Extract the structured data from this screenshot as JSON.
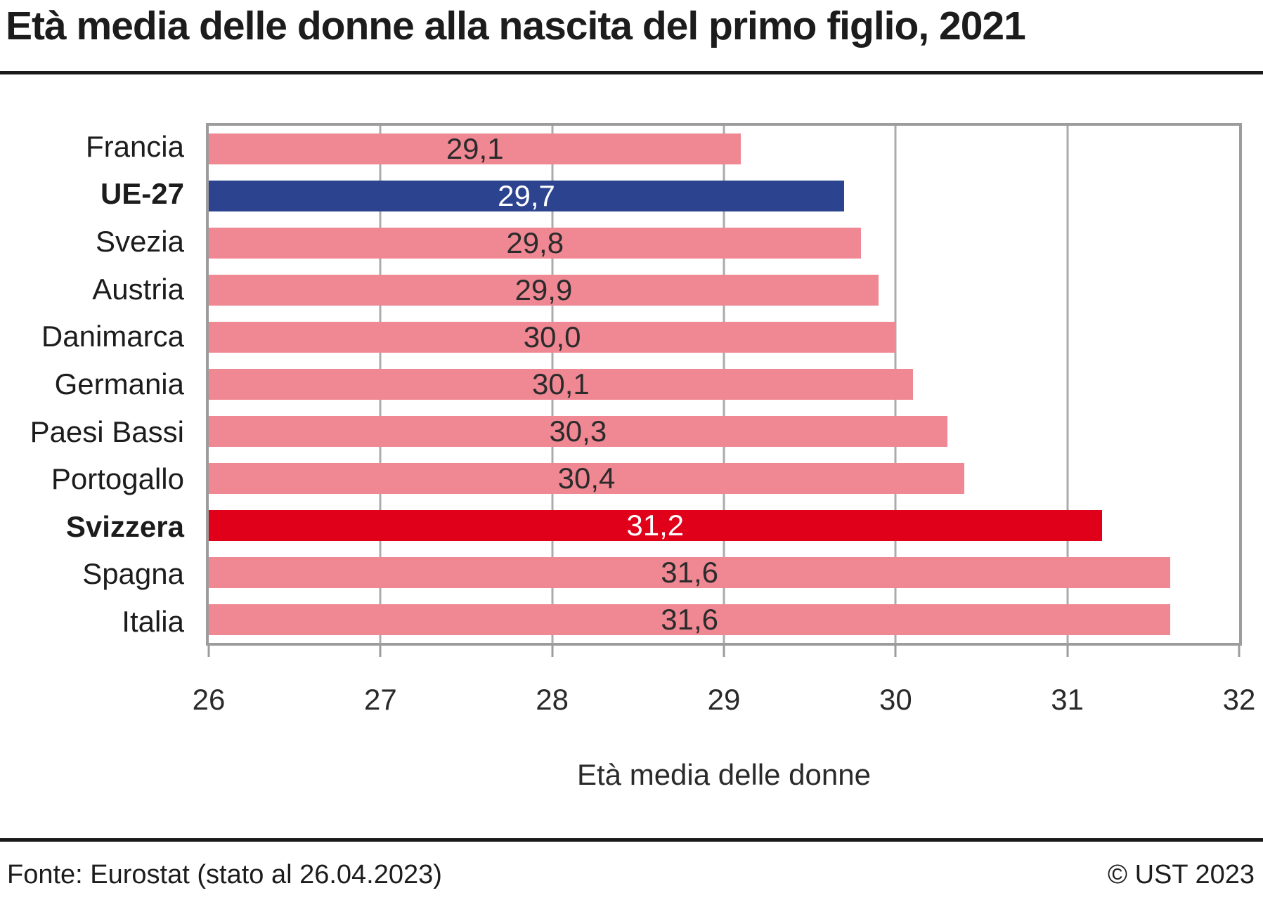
{
  "title": "Età media delle donne alla nascita del primo figlio, 2021",
  "footer": {
    "source": "Fonte: Eurostat (stato al 26.04.2023)",
    "copyright": "© UST 2023"
  },
  "chart_data": {
    "type": "bar",
    "orientation": "horizontal",
    "title": "Età media delle donne alla nascita del primo figlio, 2021",
    "xlabel": "Età media delle donne",
    "xlim": [
      26,
      32
    ],
    "x_ticks": [
      "26",
      "27",
      "28",
      "29",
      "30",
      "31",
      "32"
    ],
    "grid": true,
    "legend": "none",
    "categories": [
      "Francia",
      "UE-27",
      "Svezia",
      "Austria",
      "Danimarca",
      "Germania",
      "Paesi Bassi",
      "Portogallo",
      "Svizzera",
      "Spagna",
      "Italia"
    ],
    "values": [
      29.1,
      29.7,
      29.8,
      29.9,
      30.0,
      30.1,
      30.3,
      30.4,
      31.2,
      31.6,
      31.6
    ],
    "series": [
      {
        "label": "Francia",
        "value": 29.1,
        "display": "29,1",
        "emphasis": "none"
      },
      {
        "label": "UE-27",
        "value": 29.7,
        "display": "29,7",
        "emphasis": "eu"
      },
      {
        "label": "Svezia",
        "value": 29.8,
        "display": "29,8",
        "emphasis": "none"
      },
      {
        "label": "Austria",
        "value": 29.9,
        "display": "29,9",
        "emphasis": "none"
      },
      {
        "label": "Danimarca",
        "value": 30.0,
        "display": "30,0",
        "emphasis": "none"
      },
      {
        "label": "Germania",
        "value": 30.1,
        "display": "30,1",
        "emphasis": "none"
      },
      {
        "label": "Paesi Bassi",
        "value": 30.3,
        "display": "30,3",
        "emphasis": "none"
      },
      {
        "label": "Portogallo",
        "value": 30.4,
        "display": "30,4",
        "emphasis": "none"
      },
      {
        "label": "Svizzera",
        "value": 31.2,
        "display": "31,2",
        "emphasis": "ch"
      },
      {
        "label": "Spagna",
        "value": 31.6,
        "display": "31,6",
        "emphasis": "none"
      },
      {
        "label": "Italia",
        "value": 31.6,
        "display": "31,6",
        "emphasis": "none"
      }
    ],
    "colors": {
      "default_bar": "#F08894",
      "eu_bar": "#2C4390",
      "ch_bar": "#E0001A",
      "value_label_dark": "#2b2b2b",
      "value_label_light": "#ffffff",
      "gridline": "#ababab",
      "plot_border": "#9c9c9c",
      "rule": "#1a1a1a"
    }
  }
}
